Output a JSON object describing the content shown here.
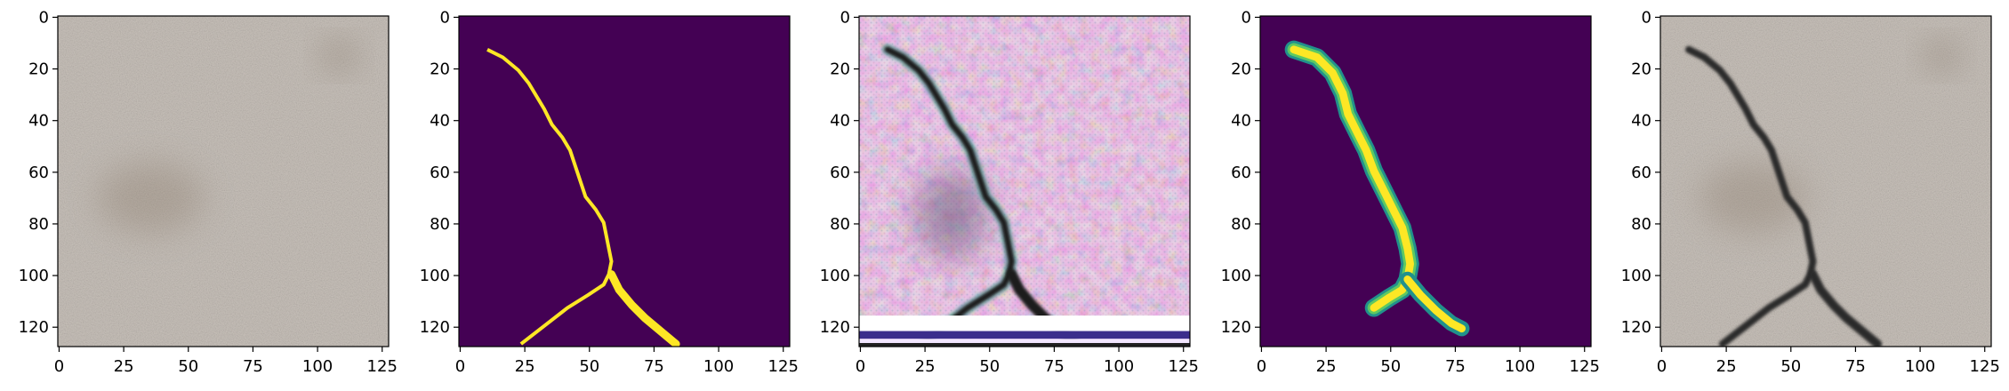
{
  "figure": {
    "panels": [
      {
        "name": "concrete-texture-panel",
        "content": "texture"
      },
      {
        "name": "crack-mask-panel",
        "content": "mask"
      },
      {
        "name": "generated-crack-image-panel",
        "content": "generated"
      },
      {
        "name": "predicted-crack-map-panel",
        "content": "prediction"
      },
      {
        "name": "synthesized-crack-image-panel",
        "content": "synth"
      }
    ],
    "x_ticks": [
      "0",
      "25",
      "50",
      "75",
      "100",
      "125"
    ],
    "y_ticks": [
      "0",
      "20",
      "40",
      "60",
      "80",
      "100",
      "120"
    ],
    "x_tick_values": [
      0,
      25,
      50,
      75,
      100,
      125
    ],
    "y_tick_values": [
      0,
      20,
      40,
      60,
      80,
      100,
      120
    ],
    "image_extent": [
      128,
      128
    ],
    "colors": {
      "mask_background": "#440154",
      "mask_foreground": "#fde725",
      "texture_base": "#c9c2bb",
      "crack_dark": "#2a2a2a"
    },
    "crack_path": [
      [
        11,
        13
      ],
      [
        17,
        16
      ],
      [
        23,
        21
      ],
      [
        27,
        26
      ],
      [
        30,
        31
      ],
      [
        33,
        36
      ],
      [
        36,
        42
      ],
      [
        40,
        47
      ],
      [
        43,
        52
      ],
      [
        45,
        58
      ],
      [
        47,
        64
      ],
      [
        49,
        70
      ],
      [
        53,
        75
      ],
      [
        56,
        80
      ],
      [
        57,
        85
      ],
      [
        58,
        90
      ],
      [
        59,
        95
      ],
      [
        58,
        100
      ],
      [
        56,
        104
      ],
      [
        50,
        108
      ],
      [
        42,
        113
      ],
      [
        33,
        120
      ],
      [
        24,
        127
      ]
    ],
    "crack_branch": [
      [
        59,
        100
      ],
      [
        62,
        106
      ],
      [
        67,
        112
      ],
      [
        72,
        117
      ],
      [
        78,
        122
      ],
      [
        84,
        127
      ]
    ]
  }
}
